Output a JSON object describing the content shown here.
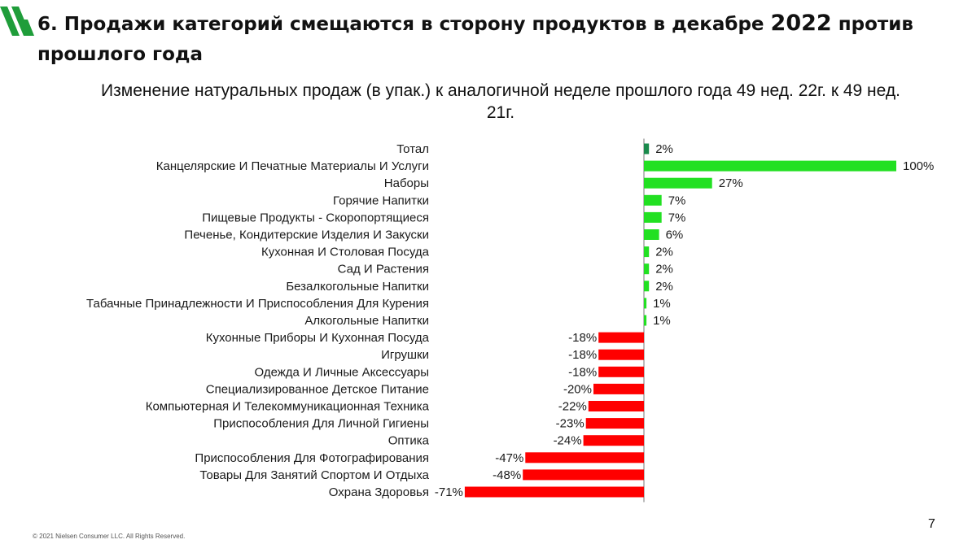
{
  "header": {
    "title_part1": "6. Продажи категорий смещаются в сторону продуктов в декабре ",
    "title_year": "2022",
    "title_part2": " против прошлого года"
  },
  "chart_data": {
    "type": "bar",
    "orientation": "horizontal",
    "title": "Изменение натуральных продаж (в упак.) к аналогичной неделе прошлого года 49 нед. 22г. к 49 нед. 21г.",
    "value_format": "percent",
    "categories": [
      "Тотал",
      "Канцелярские И Печатные Материалы И Услуги",
      "Наборы",
      "Горячие Напитки",
      "Пищевые Продукты - Скоропортящиеся",
      "Печенье, Кондитерские Изделия И Закуски",
      "Кухонная И Столовая Посуда",
      "Сад И Растения",
      "Безалкогольные Напитки",
      "Табачные Принадлежности И Приспособления Для Курения",
      "Алкогольные Напитки",
      "Кухонные Приборы И Кухонная Посуда",
      "Игрушки",
      "Одежда И Личные Аксессуары",
      "Специализированное Детское Питание",
      "Компьютерная И Телекоммуникационная Техника",
      "Приспособления Для Личной Гигиены",
      "Оптика",
      "Приспособления Для Фотографирования",
      "Товары Для Занятий Спортом И Отдыха",
      "Охрана Здоровья"
    ],
    "values": [
      2,
      100,
      27,
      7,
      7,
      6,
      2,
      2,
      2,
      1,
      1,
      -18,
      -18,
      -18,
      -20,
      -22,
      -23,
      -24,
      -47,
      -48,
      -71
    ],
    "labels": [
      "2%",
      "100%",
      "27%",
      "7%",
      "7%",
      "6%",
      "2%",
      "2%",
      "2%",
      "1%",
      "1%",
      "-18%",
      "-18%",
      "-18%",
      "-20%",
      "-22%",
      "-23%",
      "-24%",
      "-47%",
      "-48%",
      "-71%"
    ],
    "colors": {
      "total": "#1a8a4c",
      "positive": "#22e022",
      "negative": "#ff0000",
      "axis": "#777777"
    }
  },
  "footer": {
    "copyright": "© 2021 Nielsen Consumer LLC. All Rights Reserved.",
    "page_number": "7"
  }
}
